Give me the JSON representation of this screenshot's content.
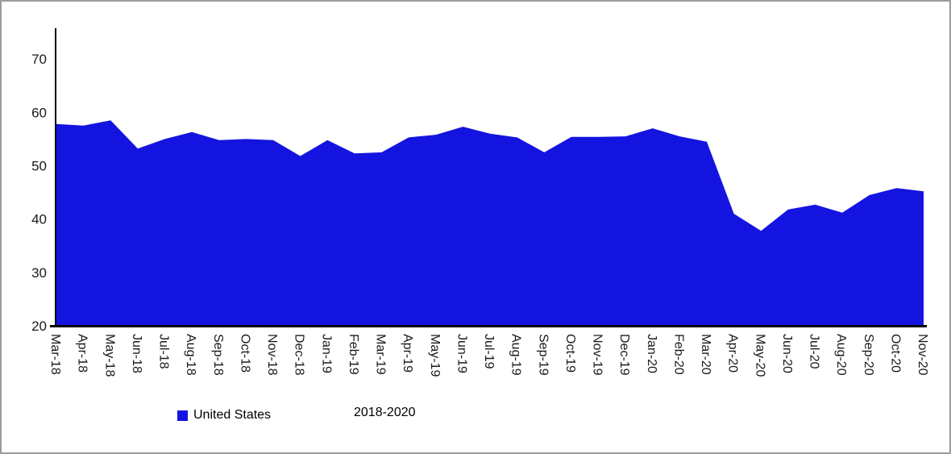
{
  "colors": {
    "series_blue": "#1414e0",
    "axis_black": "#000000",
    "frame_border_gray": "#9b9b9b"
  },
  "chart_data": {
    "type": "area",
    "title": "",
    "xlabel": "2018-2020",
    "ylabel": "",
    "ylim": [
      20,
      75
    ],
    "yticks": [
      20,
      30,
      40,
      50,
      60,
      70
    ],
    "grid": false,
    "legend_position": "bottom-left",
    "baseline": 20,
    "categories": [
      "Mar-18",
      "Apr-18",
      "May-18",
      "Jun-18",
      "Jul-18",
      "Aug-18",
      "Sep-18",
      "Oct-18",
      "Nov-18",
      "Dec-18",
      "Jan-19",
      "Feb-19",
      "Mar-19",
      "Apr-19",
      "May-19",
      "Jun-19",
      "Jul-19",
      "Aug-19",
      "Sep-19",
      "Oct-19",
      "Nov-19",
      "Dec-19",
      "Jan-20",
      "Feb-20",
      "Mar-20",
      "Apr-20",
      "May-20",
      "Jun-20",
      "Jul-20",
      "Aug-20",
      "Sep-20",
      "Oct-20",
      "Nov-20"
    ],
    "series": [
      {
        "name": "United States",
        "color": "#1414e0",
        "values": [
          57.8,
          57.5,
          58.5,
          53.2,
          55.0,
          56.3,
          54.8,
          55.0,
          54.8,
          51.8,
          54.8,
          52.3,
          52.5,
          55.3,
          55.8,
          57.3,
          56.0,
          55.3,
          52.5,
          55.4,
          55.4,
          55.5,
          57.0,
          55.5,
          54.5,
          41.0,
          37.8,
          41.8,
          42.7,
          41.2,
          44.5,
          45.8,
          45.2
        ]
      }
    ]
  }
}
